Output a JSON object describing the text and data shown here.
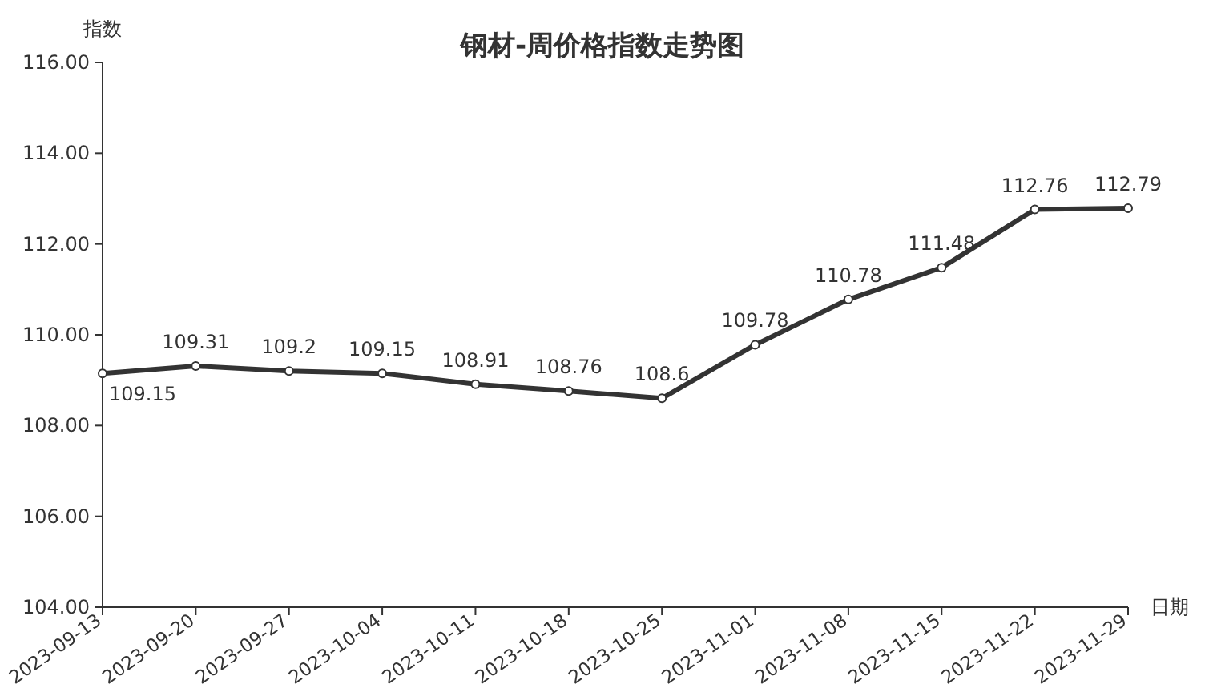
{
  "chart_data": {
    "type": "line",
    "title": "钢材-周价格指数走势图",
    "ylabel": "指数",
    "xlabel": "日期",
    "categories": [
      "2023-09-13",
      "2023-09-20",
      "2023-09-27",
      "2023-10-04",
      "2023-10-11",
      "2023-10-18",
      "2023-10-25",
      "2023-11-01",
      "2023-11-08",
      "2023-11-15",
      "2023-11-22",
      "2023-11-29"
    ],
    "series": [
      {
        "color": "#333333",
        "values": [
          109.15,
          109.31,
          109.2,
          109.15,
          108.91,
          108.76,
          108.6,
          109.78,
          110.78,
          111.48,
          112.76,
          112.79
        ]
      }
    ],
    "ylim": [
      104,
      116
    ],
    "yticks": [
      {
        "value": 104,
        "label": "104.00"
      },
      {
        "value": 106,
        "label": "106.00"
      },
      {
        "value": 108,
        "label": "108.00"
      },
      {
        "value": 110,
        "label": "110.00"
      },
      {
        "value": 112,
        "label": "112.00"
      },
      {
        "value": 114,
        "label": "114.00"
      },
      {
        "value": 116,
        "label": "116.00"
      }
    ],
    "data_labels": true,
    "marker": "circle",
    "line_style": "solid",
    "grid": false
  }
}
